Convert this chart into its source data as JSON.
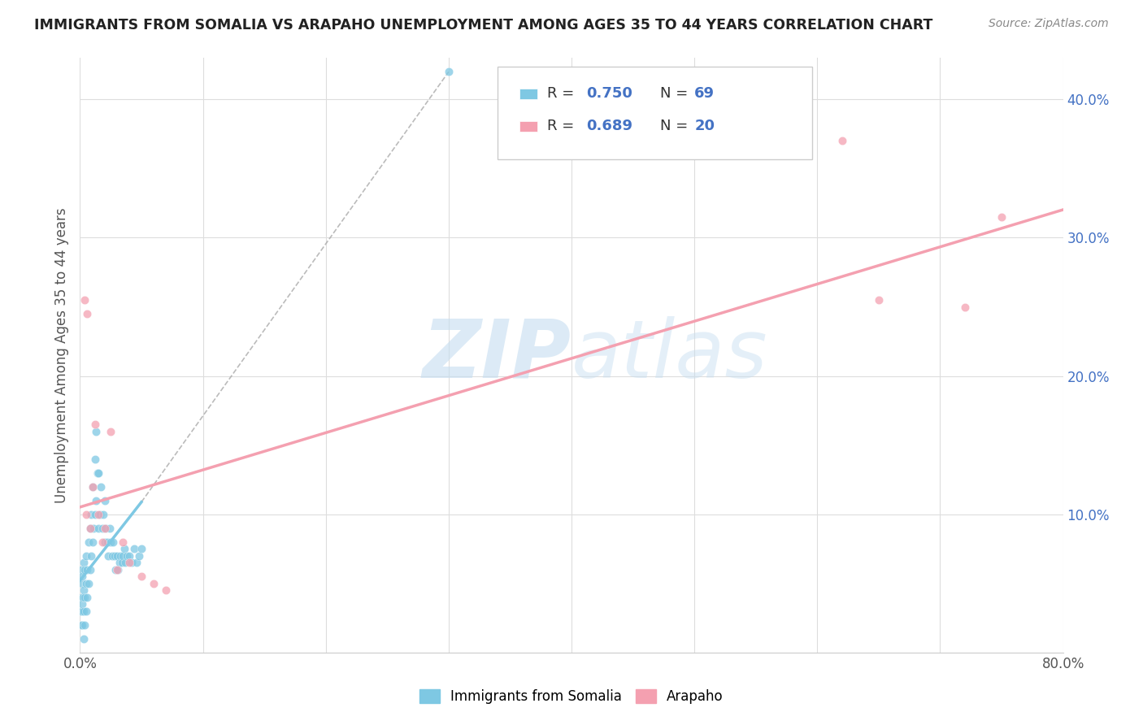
{
  "title": "IMMIGRANTS FROM SOMALIA VS ARAPAHO UNEMPLOYMENT AMONG AGES 35 TO 44 YEARS CORRELATION CHART",
  "source": "Source: ZipAtlas.com",
  "ylabel": "Unemployment Among Ages 35 to 44 years",
  "xlim": [
    0.0,
    0.8
  ],
  "ylim": [
    0.0,
    0.43
  ],
  "yticks": [
    0.0,
    0.1,
    0.2,
    0.3,
    0.4
  ],
  "ytick_labels": [
    "",
    "10.0%",
    "20.0%",
    "30.0%",
    "40.0%"
  ],
  "xtick_positions": [
    0.0,
    0.1,
    0.2,
    0.3,
    0.4,
    0.5,
    0.6,
    0.7,
    0.8
  ],
  "xtick_labels": [
    "0.0%",
    "",
    "",
    "",
    "",
    "",
    "",
    "",
    "80.0%"
  ],
  "legend_r1": "R = 0.750",
  "legend_n1": "N = 69",
  "legend_r2": "R = 0.689",
  "legend_n2": "N = 20",
  "color_somalia": "#7ec8e3",
  "color_arapaho": "#f4a0b0",
  "watermark_color": "#ddeef8",
  "somalia_x": [
    0.0005,
    0.001,
    0.001,
    0.001,
    0.0015,
    0.0015,
    0.002,
    0.002,
    0.002,
    0.0025,
    0.003,
    0.003,
    0.003,
    0.003,
    0.004,
    0.004,
    0.004,
    0.005,
    0.005,
    0.005,
    0.006,
    0.006,
    0.007,
    0.007,
    0.008,
    0.008,
    0.009,
    0.009,
    0.01,
    0.01,
    0.011,
    0.012,
    0.012,
    0.013,
    0.013,
    0.014,
    0.015,
    0.015,
    0.016,
    0.017,
    0.018,
    0.019,
    0.02,
    0.02,
    0.021,
    0.022,
    0.023,
    0.024,
    0.025,
    0.026,
    0.027,
    0.028,
    0.029,
    0.03,
    0.031,
    0.032,
    0.033,
    0.034,
    0.035,
    0.036,
    0.037,
    0.038,
    0.04,
    0.042,
    0.044,
    0.046,
    0.048,
    0.05,
    0.3
  ],
  "somalia_y": [
    0.03,
    0.02,
    0.04,
    0.06,
    0.03,
    0.05,
    0.02,
    0.035,
    0.055,
    0.04,
    0.01,
    0.03,
    0.045,
    0.065,
    0.02,
    0.04,
    0.06,
    0.03,
    0.05,
    0.07,
    0.04,
    0.06,
    0.05,
    0.08,
    0.06,
    0.09,
    0.07,
    0.1,
    0.08,
    0.12,
    0.09,
    0.1,
    0.14,
    0.11,
    0.16,
    0.13,
    0.09,
    0.13,
    0.1,
    0.12,
    0.09,
    0.1,
    0.08,
    0.11,
    0.09,
    0.08,
    0.07,
    0.09,
    0.08,
    0.07,
    0.08,
    0.07,
    0.06,
    0.07,
    0.06,
    0.065,
    0.07,
    0.065,
    0.07,
    0.075,
    0.065,
    0.07,
    0.07,
    0.065,
    0.075,
    0.065,
    0.07,
    0.075,
    0.42
  ],
  "arapaho_x": [
    0.004,
    0.005,
    0.006,
    0.008,
    0.01,
    0.012,
    0.015,
    0.018,
    0.02,
    0.025,
    0.03,
    0.035,
    0.04,
    0.05,
    0.06,
    0.07,
    0.62,
    0.65,
    0.72,
    0.75
  ],
  "arapaho_y": [
    0.255,
    0.1,
    0.245,
    0.09,
    0.12,
    0.165,
    0.1,
    0.08,
    0.09,
    0.16,
    0.06,
    0.08,
    0.065,
    0.055,
    0.05,
    0.045,
    0.37,
    0.255,
    0.25,
    0.315
  ],
  "somalia_line_x": [
    0.0,
    0.05
  ],
  "somalia_line_y": [
    0.0,
    0.42
  ],
  "arapaho_line_x": [
    0.0,
    0.8
  ],
  "arapaho_line_y": [
    0.095,
    0.325
  ]
}
